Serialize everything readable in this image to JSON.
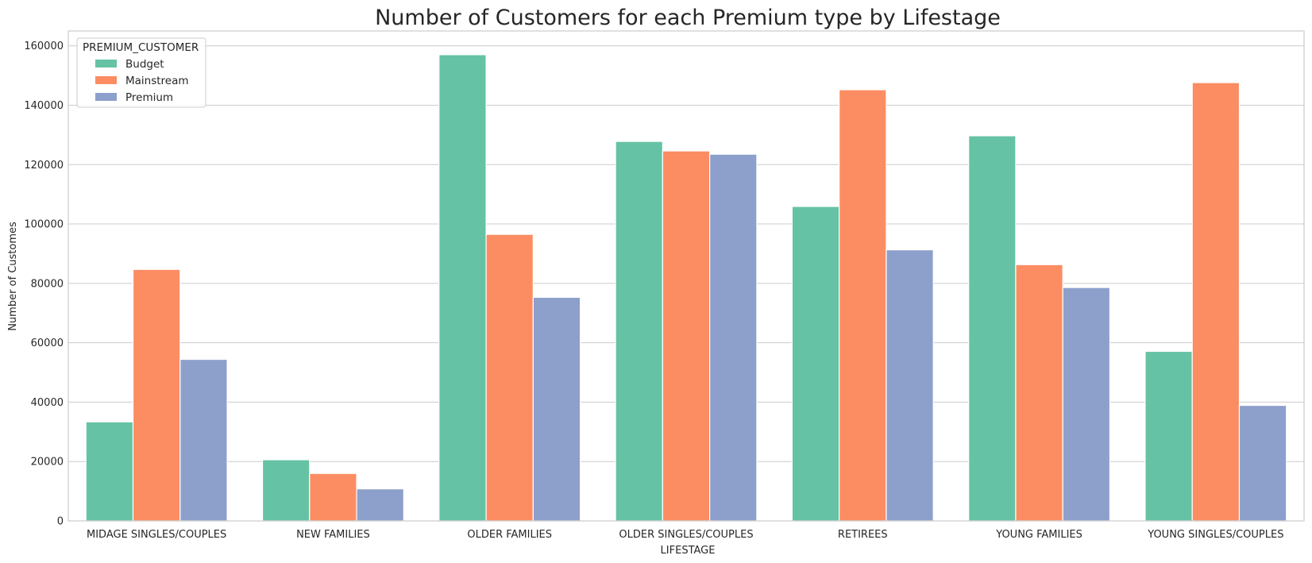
{
  "chart_data": {
    "type": "bar",
    "title": "Number of Customers for each Premium type by Lifestage",
    "xlabel": "LIFESTAGE",
    "ylabel": "Number of Customes",
    "ylim": [
      0,
      165000
    ],
    "yticks": [
      0,
      20000,
      40000,
      60000,
      80000,
      100000,
      120000,
      140000,
      160000
    ],
    "grid": true,
    "legend": {
      "title": "PREMIUM_CUSTOMER",
      "placement": "top-left"
    },
    "categories": [
      "MIDAGE SINGLES/COUPLES",
      "NEW FAMILIES",
      "OLDER FAMILIES",
      "OLDER SINGLES/COUPLES",
      "RETIREES",
      "YOUNG FAMILIES",
      "YOUNG SINGLES/COUPLES"
    ],
    "series": [
      {
        "name": "Budget",
        "color": "#66c2a5",
        "values": [
          33350,
          20600,
          157000,
          127800,
          105900,
          129700,
          57100
        ]
      },
      {
        "name": "Mainstream",
        "color": "#fc8d62",
        "values": [
          84700,
          15980,
          96500,
          124600,
          145200,
          86300,
          147600
        ]
      },
      {
        "name": "Premium",
        "color": "#8da0cb",
        "values": [
          54400,
          10800,
          75300,
          123500,
          91300,
          78600,
          38900
        ]
      }
    ]
  }
}
